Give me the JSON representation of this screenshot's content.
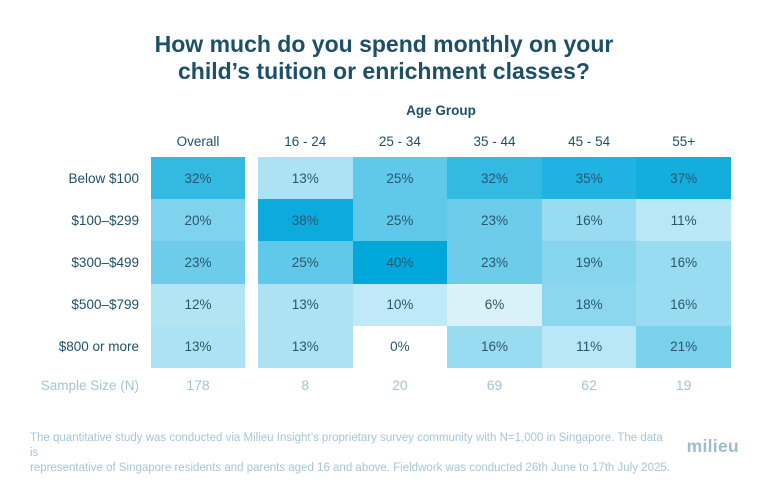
{
  "title_lines": [
    "How much do you spend monthly on your",
    "child’s tuition or enrichment classes?"
  ],
  "chart_data": {
    "type": "heatmap",
    "title": "How much do you spend monthly on your child’s tuition or enrichment classes?",
    "column_group_label": "Age Group",
    "columns": [
      "Overall",
      "16 - 24",
      "25 - 34",
      "35 - 44",
      "45 - 54",
      "55+"
    ],
    "rows": [
      "Below $100",
      "$100–$299",
      "$300–$499",
      "$500–$799",
      "$800 or more"
    ],
    "values_pct": [
      [
        32,
        13,
        25,
        32,
        35,
        37
      ],
      [
        20,
        38,
        25,
        23,
        16,
        11
      ],
      [
        23,
        25,
        40,
        23,
        19,
        16
      ],
      [
        12,
        13,
        10,
        6,
        18,
        16
      ],
      [
        13,
        13,
        0,
        16,
        11,
        21
      ]
    ],
    "value_suffix": "%",
    "sample_size_label": "Sample Size (N)",
    "sample_sizes": [
      178,
      8,
      20,
      69,
      62,
      19
    ],
    "color_scale": {
      "base_color": "#00a7db",
      "min_color": "#ffffff",
      "max_value": 40
    },
    "legend_position": "none",
    "grid": false
  },
  "footer": {
    "note_lines": [
      "The quantitative study was conducted via Milieu Insight’s proprietary survey community with N=1,000 in Singapore. The data is",
      "representative of Singapore residents and parents aged 16 and above. Fieldwork was conducted 26th June to 17th July 2025."
    ],
    "logo_text": "milieu"
  },
  "colors": {
    "heading_text": "#1d4f66",
    "cell_text": "#2a566c",
    "muted_text": "#a3c4d5",
    "accent_cyan": "#00a7db",
    "background": "#ffffff"
  }
}
